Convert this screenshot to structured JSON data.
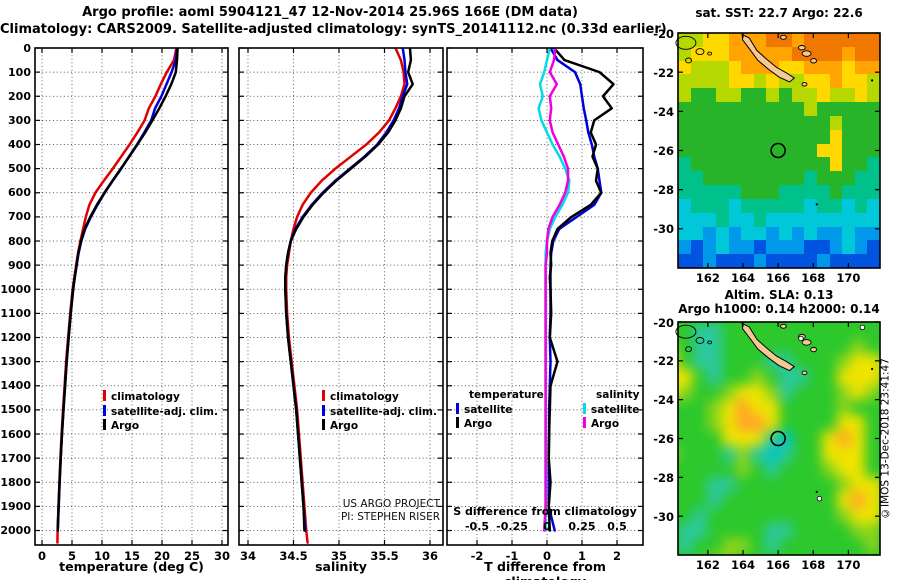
{
  "title": {
    "line1": "Argo profile: aoml 5904121_47 12-Nov-2014 25.96S 166E (DM data)",
    "line2": "Climatology: CARS2009. Satellite-adjusted climatology: synTS_20141112.nc (0.33d earlier)"
  },
  "credit": "©IMOS 13-Dec-2018 23:41:47",
  "annotations": {
    "project_line1": "US ARGO PROJECT",
    "project_line2": "PI: STEPHEN RISER"
  },
  "colors": {
    "climatology": "#e00000",
    "satellite_temp": "#0000d8",
    "argo_temp": "#000000",
    "satellite_sal": "#00dde8",
    "argo_sal": "#f000e0",
    "land": "#f5c993",
    "marker": "#000000"
  },
  "chart_data": [
    {
      "id": "temperature",
      "type": "line",
      "xlabel": "temperature (deg C)",
      "xticks": [
        0,
        5,
        10,
        15,
        20,
        25,
        30
      ],
      "xlim": [
        -1.17,
        31.0
      ],
      "ylim": [
        0,
        2060
      ],
      "ytick_step": 100,
      "ytick_max": 2000,
      "y_meaning": "depth (m), increasing downward",
      "legend": [
        "climatology",
        "satellite-adj. clim.",
        "Argo"
      ],
      "depths": [
        0,
        50,
        100,
        150,
        200,
        250,
        300,
        350,
        400,
        450,
        500,
        550,
        600,
        650,
        700,
        750,
        800,
        850,
        900,
        950,
        1000,
        1100,
        1200,
        1300,
        1400,
        1500,
        1600,
        1700,
        1800,
        1900,
        2000
      ],
      "series": [
        {
          "name": "climatology",
          "color_key": "climatology",
          "values": [
            22.4,
            22.0,
            20.8,
            19.8,
            18.9,
            17.8,
            17.1,
            15.9,
            14.6,
            13.2,
            11.8,
            10.3,
            8.9,
            7.9,
            7.3,
            6.85,
            6.4,
            6.0,
            5.7,
            5.4,
            5.1,
            4.7,
            4.35,
            4.02,
            3.77,
            3.5,
            3.27,
            3.07,
            2.9,
            2.74,
            2.6
          ],
          "tail": {
            "depth": 2050,
            "value": 2.57
          }
        },
        {
          "name": "satellite-adj. clim.",
          "color_key": "satellite_temp",
          "values": [
            22.5,
            22.3,
            21.6,
            20.75,
            19.9,
            18.85,
            18.2,
            17.05,
            15.85,
            14.5,
            13.2,
            11.8,
            10.45,
            9.25,
            8.15,
            7.2,
            6.55,
            6.1,
            5.78,
            5.47,
            5.17,
            4.77,
            4.42,
            4.1,
            3.84,
            3.57,
            3.33,
            3.12,
            2.94,
            2.78,
            2.63
          ]
        },
        {
          "name": "Argo",
          "color_key": "argo_temp",
          "values": [
            22.6,
            22.5,
            22.3,
            21.55,
            20.6,
            19.55,
            18.4,
            17.2,
            15.9,
            14.55,
            13.15,
            11.75,
            10.4,
            9.15,
            8.05,
            7.1,
            6.5,
            6.05,
            5.75,
            5.45,
            5.2,
            4.8,
            4.45,
            4.12,
            3.85,
            3.58,
            3.33,
            3.12,
            2.93,
            2.77,
            2.62
          ]
        }
      ]
    },
    {
      "id": "salinity",
      "type": "line",
      "xlabel": "salinity",
      "xticks": [
        34,
        34.5,
        35,
        35.5,
        36
      ],
      "xlim": [
        33.9,
        36.14
      ],
      "ylim": [
        0,
        2060
      ],
      "ytick_step": 100,
      "ytick_max": 2000,
      "legend": [
        "climatology",
        "satellite-adj. clim.",
        "Argo"
      ],
      "depths": [
        0,
        50,
        100,
        150,
        200,
        250,
        300,
        350,
        400,
        450,
        500,
        550,
        600,
        650,
        700,
        750,
        800,
        850,
        900,
        950,
        1000,
        1100,
        1200,
        1300,
        1400,
        1500,
        1600,
        1700,
        1800,
        1900,
        2000
      ],
      "series": [
        {
          "name": "climatology",
          "color_key": "climatology",
          "values": [
            35.62,
            35.68,
            35.71,
            35.72,
            35.68,
            35.62,
            35.55,
            35.44,
            35.3,
            35.13,
            34.96,
            34.81,
            34.69,
            34.6,
            34.54,
            34.5,
            34.47,
            34.45,
            34.43,
            34.42,
            34.42,
            34.43,
            34.45,
            34.48,
            34.51,
            34.54,
            34.56,
            34.58,
            34.6,
            34.62,
            34.64
          ],
          "tail": {
            "depth": 2050,
            "value": 34.655
          }
        },
        {
          "name": "satellite-adj. clim.",
          "color_key": "satellite_temp",
          "values": [
            35.7,
            35.72,
            35.73,
            35.75,
            35.7,
            35.66,
            35.6,
            35.52,
            35.42,
            35.28,
            35.12,
            34.96,
            34.82,
            34.7,
            34.6,
            34.52,
            34.47,
            34.44,
            34.42,
            34.41,
            34.41,
            34.42,
            34.44,
            34.47,
            34.5,
            34.53,
            34.55,
            34.57,
            34.59,
            34.61,
            34.63
          ]
        },
        {
          "name": "Argo",
          "color_key": "argo_sal_black",
          "color_key_fix": "argo_temp",
          "values": [
            35.78,
            35.79,
            35.76,
            35.81,
            35.72,
            35.68,
            35.62,
            35.54,
            35.43,
            35.29,
            35.13,
            34.97,
            34.83,
            34.71,
            34.61,
            34.53,
            34.47,
            34.44,
            34.42,
            34.41,
            34.41,
            34.42,
            34.44,
            34.47,
            34.5,
            34.53,
            34.55,
            34.57,
            34.59,
            34.61,
            34.62
          ]
        }
      ]
    },
    {
      "id": "difference",
      "type": "line",
      "xlabel": "T difference from climatology",
      "xticks": [
        -2,
        -1,
        0,
        1,
        2
      ],
      "xlim": [
        -2.86,
        2.74
      ],
      "ylim": [
        0,
        2060
      ],
      "ytick_step": 100,
      "ytick_max": 2000,
      "s_axis_title": "S difference from climatology",
      "s_ticks": [
        {
          "label": "-0.5",
          "t": -2
        },
        {
          "label": "-0.25",
          "t": -1
        },
        {
          "label": "0",
          "t": 0
        },
        {
          "label": "0.25",
          "t": 1
        },
        {
          "label": "0.5",
          "t": 2
        }
      ],
      "s_scale_factor": 4,
      "legend_groups": [
        {
          "header": "temperature",
          "items": [
            {
              "label": "satellite",
              "color_key": "satellite_temp"
            },
            {
              "label": "Argo",
              "color_key": "argo_temp"
            }
          ]
        },
        {
          "header": "salinity",
          "items": [
            {
              "label": "satellite",
              "color_key": "satellite_sal"
            },
            {
              "label": "Argo",
              "color_key": "argo_sal"
            }
          ]
        }
      ],
      "depths": [
        0,
        50,
        100,
        150,
        200,
        250,
        300,
        350,
        400,
        450,
        500,
        550,
        600,
        650,
        700,
        750,
        800,
        850,
        900,
        950,
        1000,
        1100,
        1200,
        1300,
        1400,
        1500,
        1600,
        1700,
        1800,
        1900,
        2000
      ],
      "series": [
        {
          "name": "T satellite",
          "axis": "T",
          "color_key": "satellite_temp",
          "values": [
            0.1,
            0.3,
            0.8,
            0.95,
            1.0,
            1.05,
            1.12,
            1.18,
            1.28,
            1.35,
            1.45,
            1.5,
            1.55,
            1.35,
            0.85,
            0.35,
            0.18,
            0.12,
            0.1,
            0.1,
            0.1,
            0.1,
            0.08,
            0.1,
            0.08,
            0.06,
            0.06,
            0.05,
            0.05,
            0.05,
            0.22
          ]
        },
        {
          "name": "T Argo",
          "axis": "T",
          "color_key": "argo_temp",
          "values": [
            0.2,
            0.5,
            1.5,
            1.9,
            1.6,
            1.85,
            1.35,
            1.25,
            1.4,
            1.3,
            1.45,
            1.4,
            1.55,
            1.25,
            0.7,
            0.3,
            0.15,
            0.1,
            0.12,
            0.08,
            0.1,
            0.12,
            0.08,
            0.3,
            0.1,
            0.08,
            0.06,
            0.05,
            0.1,
            0.05,
            0.08
          ]
        },
        {
          "name": "S satellite",
          "axis": "S",
          "color_key": "satellite_sal",
          "values": [
            0.02,
            0.0,
            -0.02,
            -0.05,
            -0.03,
            -0.06,
            -0.04,
            0.0,
            0.04,
            0.09,
            0.13,
            0.16,
            0.15,
            0.11,
            0.06,
            0.02,
            0.0,
            -0.01,
            -0.01,
            -0.01,
            -0.01,
            -0.01,
            -0.01,
            -0.01,
            -0.01,
            -0.01,
            -0.01,
            -0.01,
            -0.01,
            -0.01,
            -0.01
          ]
        },
        {
          "name": "S Argo",
          "axis": "S",
          "color_key": "argo_sal",
          "values": [
            0.06,
            0.05,
            0.02,
            0.07,
            0.02,
            0.03,
            0.02,
            0.04,
            0.08,
            0.12,
            0.15,
            0.15,
            0.13,
            0.09,
            0.04,
            0.01,
            0.0,
            0.0,
            -0.01,
            -0.01,
            -0.01,
            -0.01,
            -0.01,
            -0.01,
            -0.01,
            -0.01,
            -0.01,
            -0.01,
            -0.01,
            -0.01,
            -0.02
          ]
        }
      ]
    },
    {
      "id": "sst",
      "type": "heatmap",
      "title": "sat. SST: 22.7 Argo: 22.6",
      "lon_ticks": [
        162,
        164,
        166,
        168,
        170
      ],
      "lat_ticks": [
        -20,
        -22,
        -24,
        -26,
        -28,
        -30
      ],
      "lon_range": [
        160.3,
        171.8
      ],
      "lat_range": [
        -20,
        -32
      ],
      "marker": {
        "lon": 166,
        "lat": -26
      },
      "smooth": false,
      "palette": {
        "g": "#b4d800",
        "y": "#ffd800",
        "o": "#ffa400",
        "d": "#f07800",
        "G": "#28b428",
        "t": "#00c08c",
        "c": "#00c8d8",
        "s": "#0098e8",
        "b": "#0054e0"
      },
      "rows": [
        "ggyyoooddodddddd",
        "gyyyoooooddddodd",
        "ygggyoooyyoooyoo",
        "ggggyygyggyyoyyg",
        "gGGggGGgGggyggyg",
        "GGGGGGGGGGgGGGGG",
        "GGGGGGGGGGGGgGGG",
        "GGGGGGGGGGGGyGGG",
        "GGGGGGGGGGGyyGGG",
        "tGGGGGGGGGGGyGGt",
        "ttGGGGGGGGtGGGtt",
        "tttttGGGttttGttt",
        "ctttctttttcttctc",
        "ccctcctccccccccc",
        "ccscsccscscsscss",
        "sbscssbsssbbscsb",
        "bbsbbbsbbbbsbbbb"
      ]
    },
    {
      "id": "sla",
      "type": "heatmap",
      "title_line1": "Altim. SLA: 0.13",
      "title_line2": "Argo h1000: 0.14 h2000: 0.14",
      "lon_ticks": [
        162,
        164,
        166,
        168,
        170
      ],
      "lat_ticks": [
        -20,
        -22,
        -24,
        -26,
        -28,
        -30
      ],
      "lon_range": [
        160.3,
        171.8
      ],
      "lat_range": [
        -20,
        -32
      ],
      "marker": {
        "lon": 166,
        "lat": -26
      },
      "smooth": true,
      "palette": {
        "G": "#2cc82c",
        "g": "#8cd41c",
        "y": "#f0e400",
        "o": "#ffa428",
        "c": "#2cc8a0",
        "C": "#00c4c4"
      },
      "rows": [
        "gGGGGGGGGGGGGGGG",
        "GGccGGGGGGGGGGGG",
        "gGccGGGGGGGGGgGG",
        "yGccGGGccGGGgyyg",
        "yyGcGGgGccGGyyyg",
        "ygGGgyygcGGGgygG",
        "GGGgyoyyGGGGgGGG",
        "GGGgyooyGGGGyyGG",
        "GGGGyyycCGGyoyGG",
        "gGGGcgcCcGGyyyGG",
        "GGGGGgGcGGGgyyGG",
        "GGGccGGGGGGGgyyg",
        "GGGcGGGGGGGGyoyg",
        "GGcGGGGGGGGGgyyg",
        "GccGGGGccGGGGggG",
        "GcGGggGcGGGGGGgG",
        "GGGggGGGGGGGGGGG"
      ]
    }
  ]
}
